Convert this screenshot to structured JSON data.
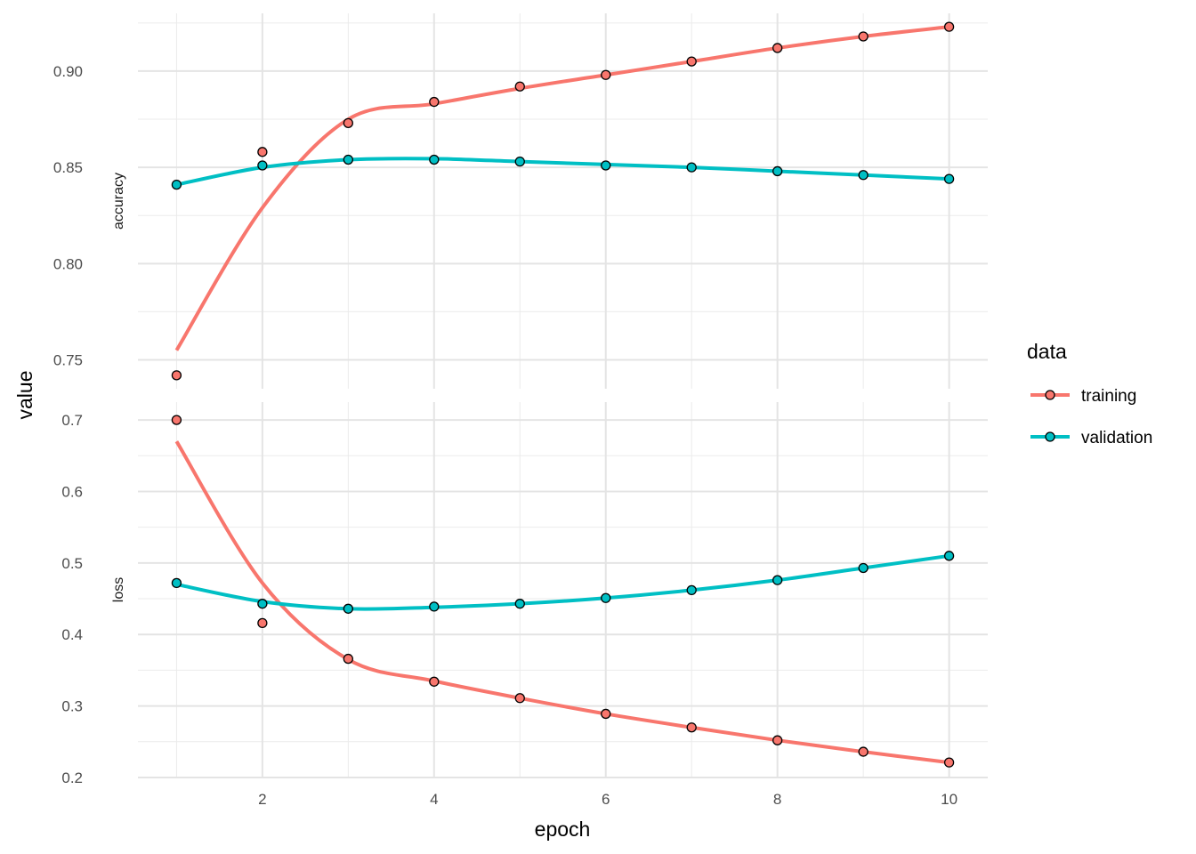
{
  "chart_data": {
    "type": "line",
    "xlabel": "epoch",
    "ylabel": "value",
    "x": [
      1,
      2,
      3,
      4,
      5,
      6,
      7,
      8,
      9,
      10
    ],
    "x_ticks": [
      2,
      4,
      6,
      8,
      10
    ],
    "xlim": [
      0.55,
      10.45
    ],
    "legend": {
      "title": "data",
      "placement": "right",
      "entries": [
        "training",
        "validation"
      ]
    },
    "colors": {
      "training": "#F8766D",
      "validation": "#00BFC4"
    },
    "grid": true,
    "panels": [
      {
        "label": "accuracy",
        "ylim": [
          0.735,
          0.93
        ],
        "y_ticks": [
          0.75,
          0.8,
          0.85,
          0.9
        ],
        "y_tick_labels": [
          "0.75",
          "0.80",
          "0.85",
          "0.90"
        ],
        "series": [
          {
            "name": "training",
            "points": [
              0.742,
              0.858,
              0.873,
              0.884,
              0.892,
              0.898,
              0.905,
              0.912,
              0.918,
              0.923
            ],
            "smooth": [
              0.755,
              0.829,
              0.875,
              0.883,
              0.891,
              0.898,
              0.905,
              0.912,
              0.918,
              0.923
            ]
          },
          {
            "name": "validation",
            "points": [
              0.841,
              0.851,
              0.854,
              0.854,
              0.853,
              0.851,
              0.85,
              0.848,
              0.846,
              0.844
            ],
            "smooth": [
              0.841,
              0.85,
              0.854,
              0.8545,
              0.853,
              0.8515,
              0.85,
              0.848,
              0.846,
              0.844
            ]
          }
        ]
      },
      {
        "label": "loss",
        "ylim": [
          0.2,
          0.725
        ],
        "y_ticks": [
          0.2,
          0.3,
          0.4,
          0.5,
          0.6,
          0.7
        ],
        "y_tick_labels": [
          "0.2",
          "0.3",
          "0.4",
          "0.5",
          "0.6",
          "0.7"
        ],
        "series": [
          {
            "name": "training",
            "points": [
              0.7,
              0.416,
              0.366,
              0.334,
              0.311,
              0.289,
              0.27,
              0.252,
              0.236,
              0.221
            ],
            "smooth": [
              0.67,
              0.472,
              0.365,
              0.335,
              0.311,
              0.289,
              0.27,
              0.252,
              0.236,
              0.221
            ]
          },
          {
            "name": "validation",
            "points": [
              0.472,
              0.443,
              0.436,
              0.439,
              0.443,
              0.451,
              0.462,
              0.476,
              0.493,
              0.51
            ],
            "smooth": [
              0.47,
              0.446,
              0.436,
              0.438,
              0.443,
              0.451,
              0.462,
              0.476,
              0.493,
              0.51
            ]
          }
        ]
      }
    ]
  }
}
